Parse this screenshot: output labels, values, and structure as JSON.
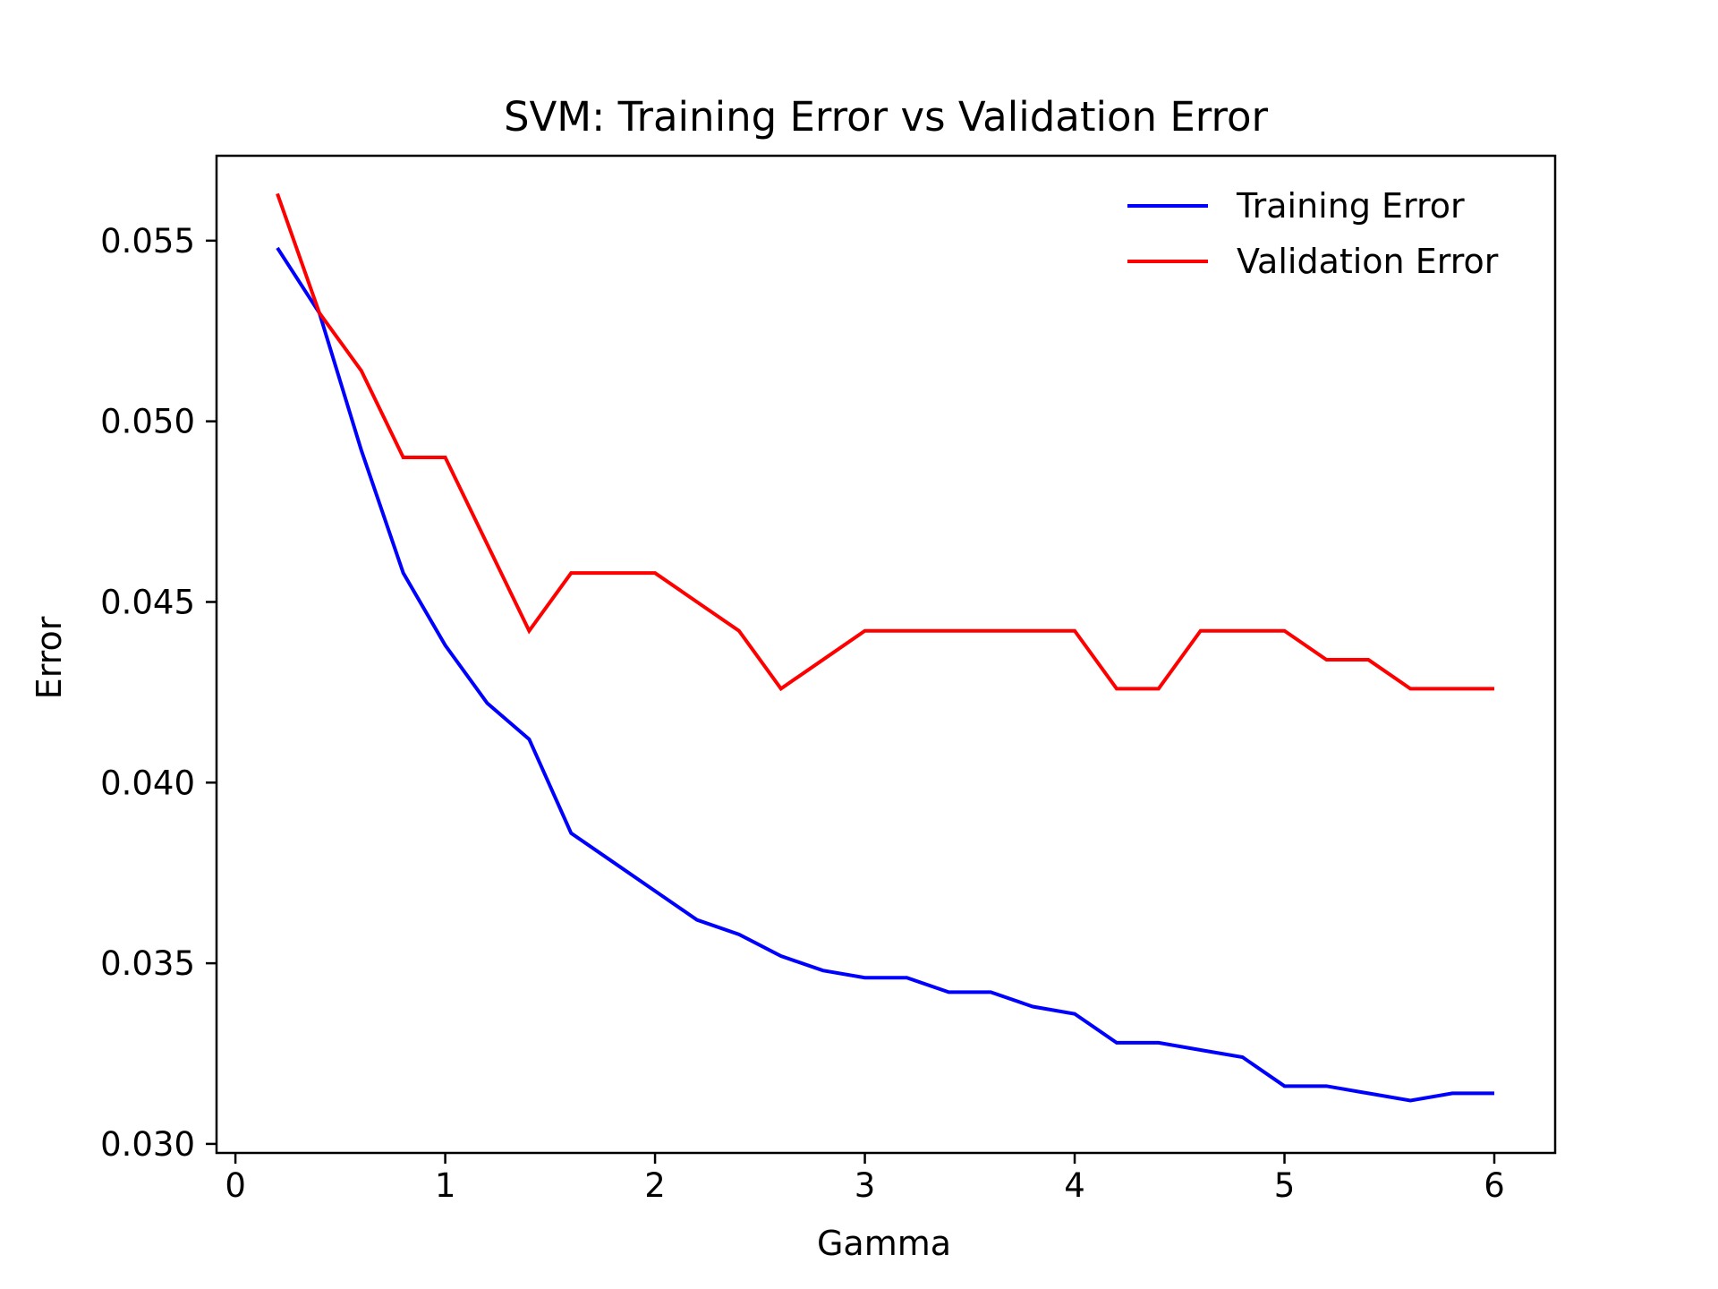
{
  "chart_data": {
    "type": "line",
    "title": "SVM: Training Error vs Validation Error",
    "xlabel": "Gamma",
    "ylabel": "Error",
    "xlim": [
      -0.09,
      6.29
    ],
    "ylim": [
      0.02975,
      0.05735
    ],
    "x_ticks": [
      0,
      1,
      2,
      3,
      4,
      5,
      6
    ],
    "x_tick_labels": [
      "0",
      "1",
      "2",
      "3",
      "4",
      "5",
      "6"
    ],
    "y_ticks": [
      0.03,
      0.035,
      0.04,
      0.045,
      0.05,
      0.055
    ],
    "y_tick_labels": [
      "0.030",
      "0.035",
      "0.040",
      "0.045",
      "0.050",
      "0.055"
    ],
    "grid": false,
    "legend_position": "top-right",
    "x": [
      0.2,
      0.4,
      0.6,
      0.8,
      1.0,
      1.2,
      1.4,
      1.6,
      1.8,
      2.0,
      2.2,
      2.4,
      2.6,
      2.8,
      3.0,
      3.2,
      3.4,
      3.6,
      3.8,
      4.0,
      4.2,
      4.4,
      4.6,
      4.8,
      5.0,
      5.2,
      5.4,
      5.6,
      5.8,
      6.0
    ],
    "series": [
      {
        "name": "Training Error",
        "color": "#0000ff",
        "values": [
          0.0548,
          0.053,
          0.0492,
          0.0458,
          0.0438,
          0.0422,
          0.0412,
          0.0386,
          0.0378,
          0.037,
          0.0362,
          0.0358,
          0.0352,
          0.0348,
          0.0346,
          0.0346,
          0.0342,
          0.0342,
          0.0338,
          0.0336,
          0.0328,
          0.0328,
          0.0326,
          0.0324,
          0.0316,
          0.0316,
          0.0314,
          0.0312,
          0.0314,
          0.0314
        ]
      },
      {
        "name": "Validation Error",
        "color": "#ff0000",
        "values": [
          0.0563,
          0.053,
          0.0514,
          0.049,
          0.049,
          0.0466,
          0.0442,
          0.0458,
          0.0458,
          0.0458,
          0.045,
          0.0442,
          0.0426,
          0.0434,
          0.0442,
          0.0442,
          0.0442,
          0.0442,
          0.0442,
          0.0442,
          0.0426,
          0.0426,
          0.0442,
          0.0442,
          0.0442,
          0.0434,
          0.0434,
          0.0426,
          0.0426,
          0.0426
        ]
      }
    ]
  }
}
